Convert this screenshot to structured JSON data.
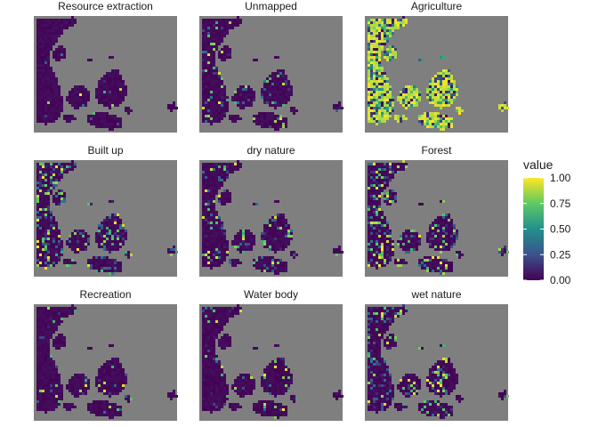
{
  "chart_data": {
    "type": "heatmap",
    "facets": [
      {
        "title": "Resource extraction",
        "mean_value": 0.01,
        "speckle": 0.02
      },
      {
        "title": "Unmapped",
        "mean_value": 0.05,
        "speckle": 0.15
      },
      {
        "title": "Agriculture",
        "mean_value": 0.75,
        "speckle": 0.6
      },
      {
        "title": "Built up",
        "mean_value": 0.12,
        "speckle": 0.35
      },
      {
        "title": "dry nature",
        "mean_value": 0.06,
        "speckle": 0.2
      },
      {
        "title": "Forest",
        "mean_value": 0.1,
        "speckle": 0.35
      },
      {
        "title": "Recreation",
        "mean_value": 0.03,
        "speckle": 0.08
      },
      {
        "title": "Water body",
        "mean_value": 0.03,
        "speckle": 0.1
      },
      {
        "title": "wet nature",
        "mean_value": 0.08,
        "speckle": 0.3
      }
    ],
    "layout": "3x3 facet grid",
    "legend": {
      "title": "value",
      "ticks": [
        "1.00",
        "0.75",
        "0.50",
        "0.25",
        "0.00"
      ],
      "range": [
        0,
        1
      ],
      "placement": "right"
    },
    "colorscale": "viridis",
    "colors": {
      "panel_background": "#7f7f7f",
      "land_low": "#440154",
      "viridis_stops": [
        "#440154",
        "#3b528b",
        "#21908d",
        "#5dc963",
        "#fde725"
      ]
    },
    "grid": false
  }
}
